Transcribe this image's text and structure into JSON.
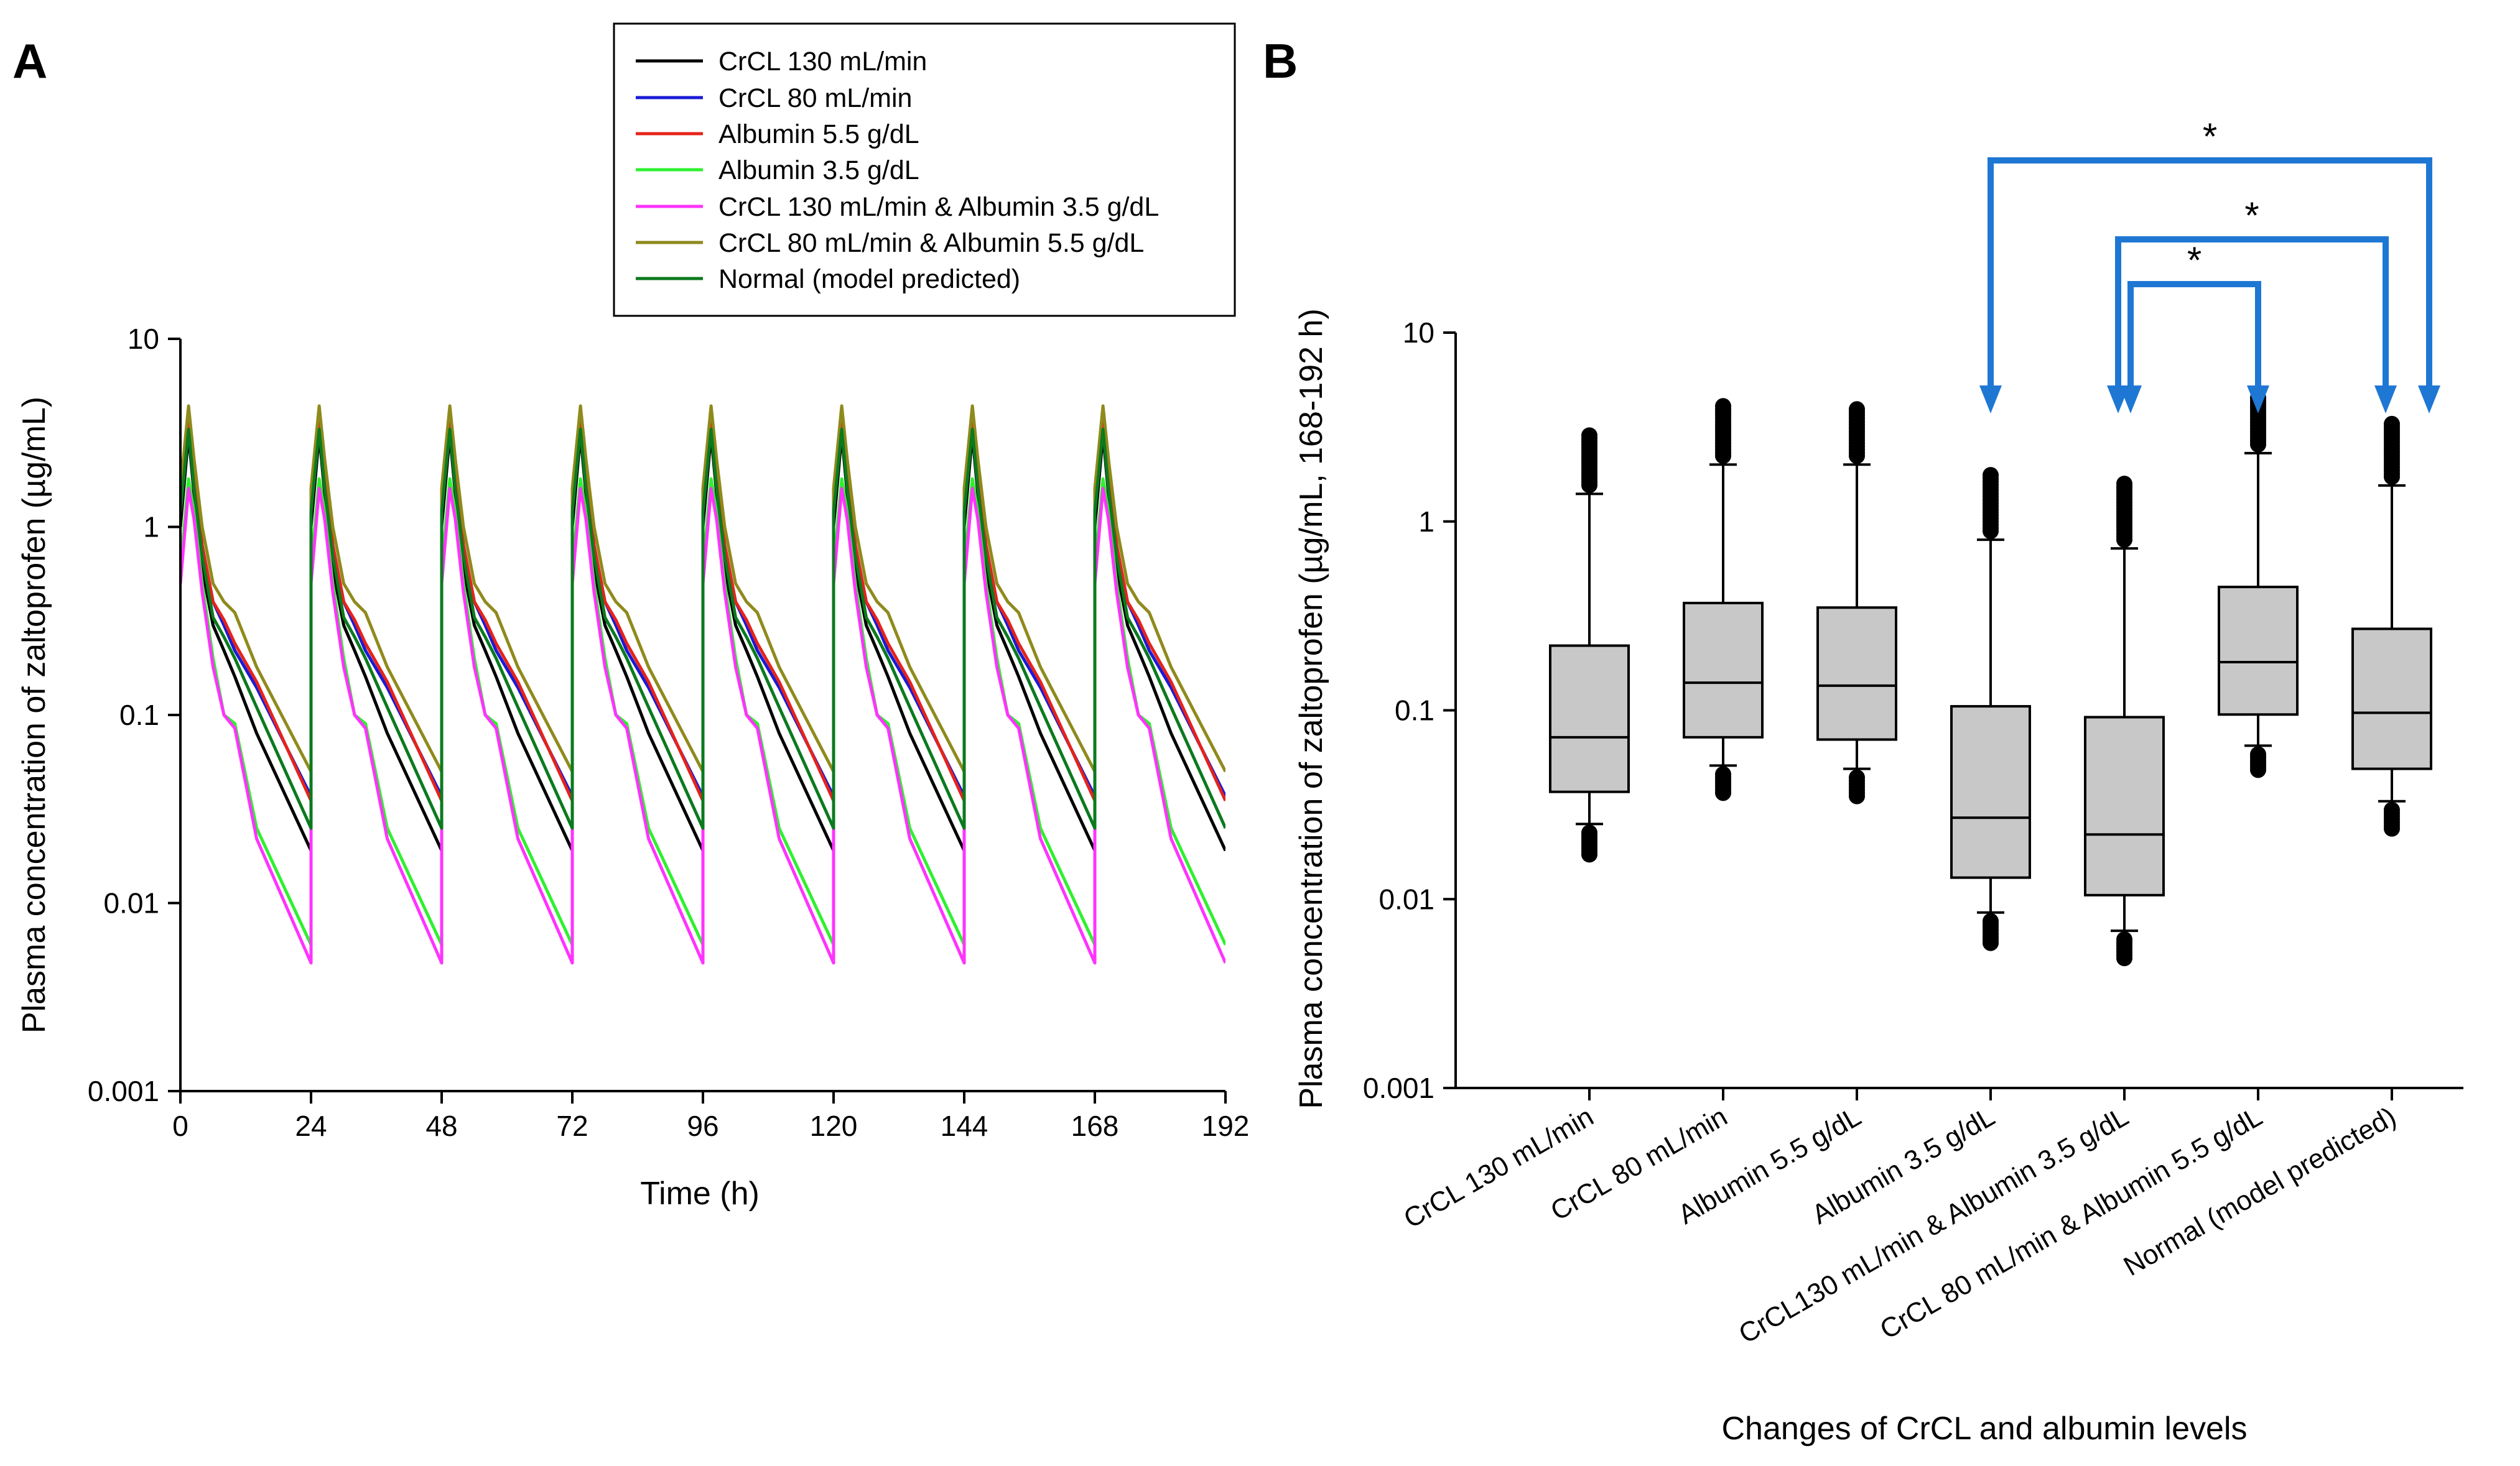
{
  "colors": {
    "crcl130": "#000000",
    "crcl80": "#1a1ad6",
    "alb55": "#e5231b",
    "alb35": "#2ff02f",
    "crcl130_alb35": "#ff33ff",
    "crcl80_alb55": "#8f8a1c",
    "normal": "#0b7a1e",
    "box_fill": "#c8c8c8",
    "bracket": "#1f77d4"
  },
  "chart_data": [
    {
      "panel": "A",
      "type": "line",
      "xlabel": "Time (h)",
      "ylabel": "Plasma concentration of zaltoprofen (µg/mL)",
      "yscale": "log",
      "xlim": [
        0,
        192
      ],
      "ylim": [
        0.001,
        10
      ],
      "xticks": [
        "0",
        "24",
        "48",
        "72",
        "96",
        "120",
        "144",
        "168",
        "192"
      ],
      "yticks": [
        "0.001",
        "0.01",
        "0.1",
        "1",
        "10"
      ],
      "dose_interval_h": 24,
      "legend": [
        "CrCL 130 mL/min",
        "CrCL 80 mL/min",
        "Albumin 5.5 g/dL",
        "Albumin 3.5 g/dL",
        "CrCL 130 mL/min & Albumin 3.5 g/dL",
        "CrCL 80 mL/min & Albumin 5.5 g/dL",
        "Normal (model predicted)"
      ],
      "series": [
        {
          "name": "CrCL 130 mL/min",
          "color_key": "crcl130",
          "profile_t": [
            0,
            1.5,
            2.5,
            4,
            6,
            8,
            10,
            14,
            24
          ],
          "profile_c": [
            1.0,
            3.1,
            1.5,
            0.6,
            0.3,
            0.22,
            0.16,
            0.08,
            0.019
          ]
        },
        {
          "name": "CrCL 80 mL/min",
          "color_key": "crcl80",
          "profile_t": [
            0,
            1.5,
            2.5,
            4,
            6,
            8,
            10,
            14,
            24
          ],
          "profile_c": [
            1.3,
            3.6,
            1.8,
            0.8,
            0.4,
            0.3,
            0.22,
            0.14,
            0.037
          ]
        },
        {
          "name": "Albumin 5.5 g/dL",
          "color_key": "alb55",
          "profile_t": [
            0,
            1.5,
            2.5,
            4,
            6,
            8,
            10,
            14,
            24
          ],
          "profile_c": [
            1.4,
            4.0,
            1.9,
            0.8,
            0.4,
            0.32,
            0.24,
            0.15,
            0.035
          ]
        },
        {
          "name": "Albumin 3.5 g/dL",
          "color_key": "alb35",
          "profile_t": [
            0,
            1.5,
            2.5,
            4,
            6,
            8,
            10,
            14,
            24
          ],
          "profile_c": [
            0.6,
            1.8,
            1.2,
            0.5,
            0.2,
            0.1,
            0.09,
            0.025,
            0.006
          ]
        },
        {
          "name": "CrCL 130 mL/min & Albumin 3.5 g/dL",
          "color_key": "crcl130_alb35",
          "profile_t": [
            0,
            1.5,
            2.5,
            4,
            6,
            8,
            10,
            14,
            24
          ],
          "profile_c": [
            0.5,
            1.6,
            1.1,
            0.45,
            0.18,
            0.1,
            0.085,
            0.022,
            0.0048
          ]
        },
        {
          "name": "CrCL 80 mL/min & Albumin 5.5 g/dL",
          "color_key": "crcl80_alb55",
          "profile_t": [
            0,
            1.5,
            2.5,
            4,
            6,
            8,
            10,
            14,
            24
          ],
          "profile_c": [
            1.6,
            4.4,
            2.3,
            1.0,
            0.5,
            0.4,
            0.35,
            0.18,
            0.05
          ]
        },
        {
          "name": "Normal (model predicted)",
          "color_key": "normal",
          "profile_t": [
            0,
            1.5,
            2.5,
            4,
            6,
            8,
            10,
            14,
            24
          ],
          "profile_c": [
            1.2,
            3.3,
            1.6,
            0.7,
            0.33,
            0.26,
            0.2,
            0.11,
            0.025
          ]
        }
      ]
    },
    {
      "panel": "B",
      "type": "box",
      "xlabel": "Changes of CrCL and albumin levels",
      "ylabel": "Plasma concentration of zaltoprofen (µg/mL, 168-192 h)",
      "yscale": "log",
      "ylim": [
        0.001,
        10
      ],
      "yticks": [
        "0.001",
        "0.01",
        "0.1",
        "1",
        "10"
      ],
      "categories": [
        "CrCL 130 mL/min",
        "CrCL 80 mL/min",
        "Albumin 5.5 g/dL",
        "Albumin 3.5 g/dL",
        "CrCL130 mL/min & Albumin 3.5 g/dL",
        "CrCL 80 mL/min & Albumin 5.5 g/dL",
        "Normal (model predicted)"
      ],
      "boxes": [
        {
          "q1": 0.037,
          "median": 0.072,
          "q3": 0.22,
          "whisker_low": 0.025,
          "whisker_high": 1.4,
          "outlier_low_min": 0.017,
          "outlier_high_max": 2.9
        },
        {
          "q1": 0.072,
          "median": 0.14,
          "q3": 0.37,
          "whisker_low": 0.051,
          "whisker_high": 2.0,
          "outlier_low_min": 0.036,
          "outlier_high_max": 4.1
        },
        {
          "q1": 0.07,
          "median": 0.135,
          "q3": 0.35,
          "whisker_low": 0.049,
          "whisker_high": 2.0,
          "outlier_low_min": 0.035,
          "outlier_high_max": 4.0
        },
        {
          "q1": 0.013,
          "median": 0.027,
          "q3": 0.105,
          "whisker_low": 0.0085,
          "whisker_high": 0.8,
          "outlier_low_min": 0.0058,
          "outlier_high_max": 1.8
        },
        {
          "q1": 0.0105,
          "median": 0.022,
          "q3": 0.092,
          "whisker_low": 0.0068,
          "whisker_high": 0.72,
          "outlier_low_min": 0.0047,
          "outlier_high_max": 1.6
        },
        {
          "q1": 0.095,
          "median": 0.18,
          "q3": 0.45,
          "whisker_low": 0.065,
          "whisker_high": 2.3,
          "outlier_low_min": 0.048,
          "outlier_high_max": 4.6
        },
        {
          "q1": 0.049,
          "median": 0.097,
          "q3": 0.27,
          "whisker_low": 0.033,
          "whisker_high": 1.55,
          "outlier_low_min": 0.023,
          "outlier_high_max": 3.4
        }
      ],
      "significance": [
        {
          "from": 3,
          "to": 6,
          "label": "*"
        },
        {
          "from": 4,
          "to": 6,
          "label": "*"
        },
        {
          "from": 4,
          "to": 5,
          "label": "*"
        }
      ]
    }
  ]
}
